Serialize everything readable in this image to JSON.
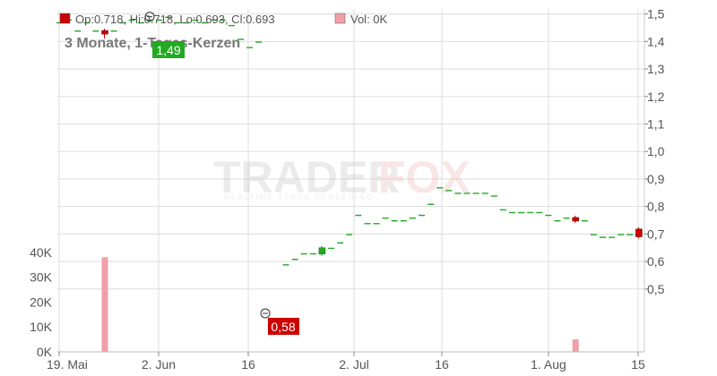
{
  "chart_data": {
    "type": "candlestick",
    "title": "3 Monate, 1-Tages-Kerzen",
    "legend": {
      "ohlc_label": "Op:0.718, Hi:0.718, Lo:0.693, Cl:0.693",
      "vol_label": "Vol: 0K",
      "ohlc_color": "#cc0000",
      "vol_color": "#f0a0a8"
    },
    "watermark": {
      "text_a": "TRADER",
      "text_b": "FOX",
      "subtext": "REALTIME STOCK SCREENING"
    },
    "price_axis": {
      "range": [
        0.44,
        1.56
      ],
      "ticks": [
        "1,5",
        "1,4",
        "1,3",
        "1,2",
        "1,1",
        "1,0",
        "0,9",
        "0,8",
        "0,7",
        "0,6",
        "0,5"
      ]
    },
    "volume_axis": {
      "range_k": [
        0,
        40
      ],
      "ticks": [
        "40K",
        "30K",
        "20K",
        "10K",
        "0K"
      ]
    },
    "x_axis": {
      "labels": [
        "19. Mai",
        "2. Jun",
        "16",
        "2. Jul",
        "16",
        "1. Aug",
        "15"
      ]
    },
    "annotations": {
      "high": {
        "label": "1,49",
        "value": 1.49,
        "color": "#22aa22"
      },
      "low": {
        "label": "0,58",
        "value": 0.58,
        "color": "#cc0000"
      }
    },
    "colors": {
      "up": "#22aa22",
      "down": "#cc0000",
      "volume": "#f0a0a8",
      "grid": "#dddddd"
    },
    "candles": [
      {
        "i": 0,
        "close": 1.47,
        "dir": "up"
      },
      {
        "i": 1,
        "close": 1.48,
        "dir": "up"
      },
      {
        "i": 2,
        "close": 1.44,
        "dir": "up"
      },
      {
        "i": 3,
        "close": 1.47,
        "dir": "up"
      },
      {
        "i": 4,
        "close": 1.44,
        "dir": "up"
      },
      {
        "i": 5,
        "close": 1.43,
        "dir": "down",
        "open": 1.44,
        "high": 1.44,
        "low": 1.42
      },
      {
        "i": 6,
        "close": 1.44,
        "dir": "up"
      },
      {
        "i": 7,
        "close": 1.47,
        "dir": "up"
      },
      {
        "i": 8,
        "close": 1.48,
        "dir": "up"
      },
      {
        "i": 9,
        "close": 1.47,
        "dir": "up"
      },
      {
        "i": 10,
        "close": 1.48,
        "dir": "up"
      },
      {
        "i": 11,
        "close": 1.48,
        "dir": "up"
      },
      {
        "i": 12,
        "close": 1.49,
        "dir": "up"
      },
      {
        "i": 13,
        "close": 1.47,
        "dir": "up"
      },
      {
        "i": 14,
        "close": 1.47,
        "dir": "up"
      },
      {
        "i": 15,
        "close": 1.48,
        "dir": "up"
      },
      {
        "i": 16,
        "close": 1.47,
        "dir": "up"
      },
      {
        "i": 17,
        "close": 1.48,
        "dir": "up"
      },
      {
        "i": 18,
        "close": 1.48,
        "dir": "up"
      },
      {
        "i": 19,
        "close": 1.46,
        "dir": "up"
      },
      {
        "i": 20,
        "close": 1.41,
        "dir": "up"
      },
      {
        "i": 21,
        "close": 1.38,
        "dir": "up"
      },
      {
        "i": 22,
        "close": 1.4,
        "dir": "up"
      },
      {
        "i": 25,
        "close": 0.59,
        "dir": "up"
      },
      {
        "i": 26,
        "close": 0.61,
        "dir": "up"
      },
      {
        "i": 27,
        "close": 0.63,
        "dir": "up"
      },
      {
        "i": 28,
        "close": 0.63,
        "dir": "up"
      },
      {
        "i": 29,
        "close": 0.65,
        "dir": "up",
        "open": 0.63,
        "high": 0.65,
        "low": 0.63
      },
      {
        "i": 30,
        "close": 0.65,
        "dir": "up"
      },
      {
        "i": 31,
        "close": 0.67,
        "dir": "up"
      },
      {
        "i": 32,
        "close": 0.7,
        "dir": "up"
      },
      {
        "i": 33,
        "close": 0.77,
        "dir": "up"
      },
      {
        "i": 34,
        "close": 0.74,
        "dir": "up"
      },
      {
        "i": 35,
        "close": 0.74,
        "dir": "up"
      },
      {
        "i": 36,
        "close": 0.76,
        "dir": "up"
      },
      {
        "i": 37,
        "close": 0.75,
        "dir": "up"
      },
      {
        "i": 38,
        "close": 0.75,
        "dir": "up"
      },
      {
        "i": 39,
        "close": 0.76,
        "dir": "up"
      },
      {
        "i": 40,
        "close": 0.77,
        "dir": "up"
      },
      {
        "i": 41,
        "close": 0.81,
        "dir": "up"
      },
      {
        "i": 42,
        "close": 0.87,
        "dir": "up"
      },
      {
        "i": 43,
        "close": 0.86,
        "dir": "up"
      },
      {
        "i": 44,
        "close": 0.85,
        "dir": "up"
      },
      {
        "i": 45,
        "close": 0.85,
        "dir": "up"
      },
      {
        "i": 46,
        "close": 0.85,
        "dir": "up"
      },
      {
        "i": 47,
        "close": 0.85,
        "dir": "up"
      },
      {
        "i": 48,
        "close": 0.84,
        "dir": "up"
      },
      {
        "i": 49,
        "close": 0.79,
        "dir": "up"
      },
      {
        "i": 50,
        "close": 0.78,
        "dir": "up"
      },
      {
        "i": 51,
        "close": 0.78,
        "dir": "up"
      },
      {
        "i": 52,
        "close": 0.78,
        "dir": "up"
      },
      {
        "i": 53,
        "close": 0.78,
        "dir": "up"
      },
      {
        "i": 54,
        "close": 0.77,
        "dir": "up"
      },
      {
        "i": 55,
        "close": 0.75,
        "dir": "up"
      },
      {
        "i": 56,
        "close": 0.76,
        "dir": "up"
      },
      {
        "i": 57,
        "close": 0.75,
        "dir": "down",
        "open": 0.76,
        "high": 0.76,
        "low": 0.75
      },
      {
        "i": 58,
        "close": 0.75,
        "dir": "up"
      },
      {
        "i": 59,
        "close": 0.7,
        "dir": "up"
      },
      {
        "i": 60,
        "close": 0.69,
        "dir": "up"
      },
      {
        "i": 61,
        "close": 0.69,
        "dir": "up"
      },
      {
        "i": 62,
        "close": 0.7,
        "dir": "up"
      },
      {
        "i": 63,
        "close": 0.7,
        "dir": "up"
      },
      {
        "i": 64,
        "close": 0.693,
        "dir": "down",
        "open": 0.718,
        "high": 0.718,
        "low": 0.693
      }
    ],
    "volumes_k": [
      {
        "i": 5,
        "value": 38
      },
      {
        "i": 57,
        "value": 5
      }
    ]
  }
}
